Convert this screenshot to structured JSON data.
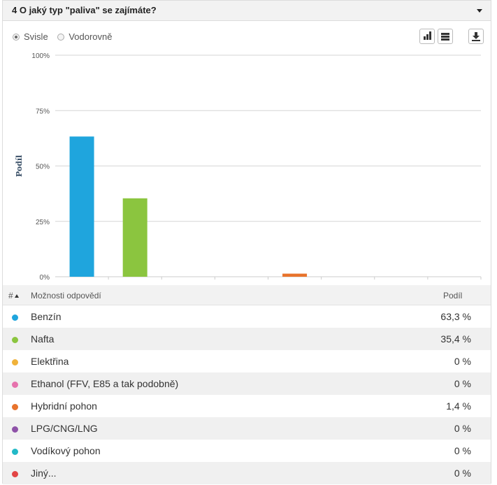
{
  "question": {
    "title": "4 O jaký typ \"paliva\" se zajímáte?"
  },
  "view_options": [
    {
      "label": "Svisle",
      "selected": true
    },
    {
      "label": "Vodorovně",
      "selected": false
    }
  ],
  "table": {
    "col_num": "#",
    "col_option": "Možnosti odpovědí",
    "col_share": "Podíl",
    "rows": [
      {
        "label": "Benzín",
        "value": "63,3 %",
        "color": "#1fa5dd"
      },
      {
        "label": "Nafta",
        "value": "35,4 %",
        "color": "#8bc53f"
      },
      {
        "label": "Elektřina",
        "value": "0 %",
        "color": "#f0b23a"
      },
      {
        "label": "Ethanol (FFV, E85 a tak podobně)",
        "value": "0 %",
        "color": "#e673ad"
      },
      {
        "label": "Hybridní pohon",
        "value": "1,4 %",
        "color": "#e8732c"
      },
      {
        "label": "LPG/CNG/LNG",
        "value": "0 %",
        "color": "#8e52a8"
      },
      {
        "label": "Vodíkový pohon",
        "value": "0 %",
        "color": "#22b9c7"
      },
      {
        "label": "Jiný...",
        "value": "0 %",
        "color": "#e24545"
      }
    ]
  },
  "chart_data": {
    "type": "bar",
    "categories": [
      "Benzín",
      "Nafta",
      "Elektřina",
      "Ethanol (FFV, E85 a tak podobně)",
      "Hybridní pohon",
      "LPG/CNG/LNG",
      "Vodíkový pohon",
      "Jiný..."
    ],
    "values": [
      63.3,
      35.4,
      0,
      0,
      1.4,
      0,
      0,
      0
    ],
    "colors": [
      "#1fa5dd",
      "#8bc53f",
      "#f0b23a",
      "#e673ad",
      "#e8732c",
      "#8e52a8",
      "#22b9c7",
      "#e24545"
    ],
    "ylabel": "Podíl",
    "yticks": [
      "0%",
      "25%",
      "50%",
      "75%",
      "100%"
    ],
    "ylim": [
      0,
      100
    ],
    "grid": true
  }
}
